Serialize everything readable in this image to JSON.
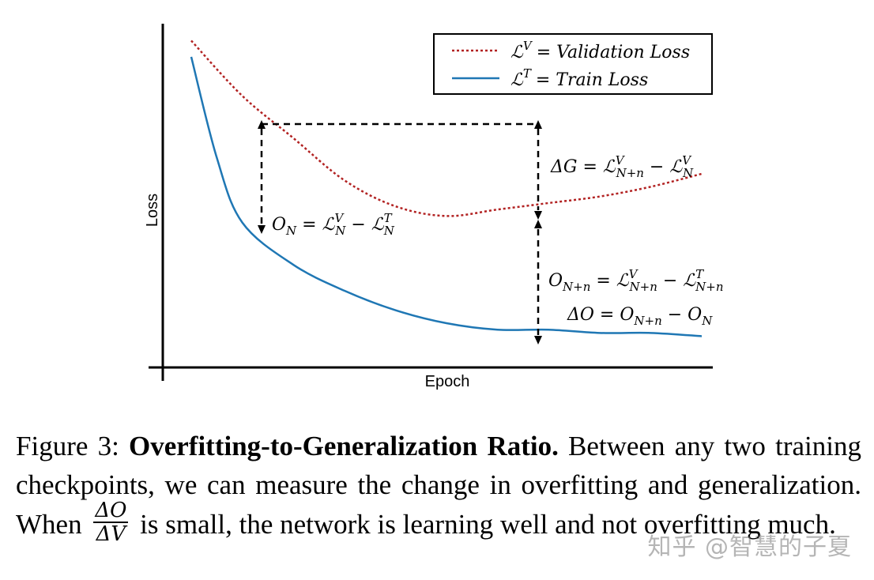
{
  "chart_data": {
    "type": "line",
    "xlabel": "Epoch",
    "ylabel": "Loss",
    "legend": {
      "placement": "top-right",
      "entries": [
        {
          "lhs": "ℒ",
          "sup": "V",
          "rhs": "= Validation Loss",
          "style": "dotted",
          "color": "#b22222"
        },
        {
          "lhs": "ℒ",
          "sup": "T",
          "rhs": "= Train Loss",
          "style": "solid",
          "color": "#1f77b4"
        }
      ]
    },
    "series": [
      {
        "key": "validation",
        "style": "dotted",
        "color": "#b22222",
        "x": [
          0,
          0.1,
          0.2,
          0.3,
          0.4,
          0.5,
          0.6,
          0.7,
          0.8,
          0.9,
          1.0
        ],
        "y": [
          0.96,
          0.79,
          0.66,
          0.53,
          0.45,
          0.42,
          0.44,
          0.46,
          0.48,
          0.51,
          0.55
        ]
      },
      {
        "key": "train",
        "style": "solid",
        "color": "#1f77b4",
        "x": [
          0,
          0.05,
          0.1,
          0.2,
          0.3,
          0.4,
          0.5,
          0.6,
          0.7,
          0.8,
          0.9,
          1.0
        ],
        "y": [
          0.91,
          0.6,
          0.4,
          0.27,
          0.19,
          0.13,
          0.09,
          0.07,
          0.07,
          0.06,
          0.06,
          0.05
        ]
      }
    ],
    "xlim": [
      0,
      1
    ],
    "ylim": [
      0,
      1
    ],
    "grid": false,
    "annotations": {
      "o_n": {
        "main": "O",
        "sub": "N",
        "eq": " = ℒ",
        "sup1": "V",
        "sub1": "N",
        "minus": " − ℒ",
        "sup2": "T",
        "sub2": "N"
      },
      "delta_g": {
        "main": "ΔG = ℒ",
        "sup1": "V",
        "sub1": "N+n",
        "minus": " − ℒ",
        "sup2": "V",
        "sub2": "N"
      },
      "o_nn": {
        "main": "O",
        "sub": "N+n",
        "eq": " = ℒ",
        "sup1": "V",
        "sub1": "N+n",
        "minus": " − ℒ",
        "sup2": "T",
        "sub2": "N+n"
      },
      "delta_o": {
        "main": "ΔO = O",
        "sub1": "N+n",
        "minus": " − O",
        "sub2": "N"
      }
    }
  },
  "caption": {
    "prefix": "Figure 3: ",
    "title": "Overfitting-to-Generalization Ratio.",
    "text1": " Between any two training checkpoints, we can measure the change in overfitting and generalization.  When ",
    "frac_num": "ΔO",
    "frac_den": "ΔV",
    "text2": " is small, the network is learning well and not overfitting much."
  },
  "watermark": "知乎 @智慧的子夏"
}
